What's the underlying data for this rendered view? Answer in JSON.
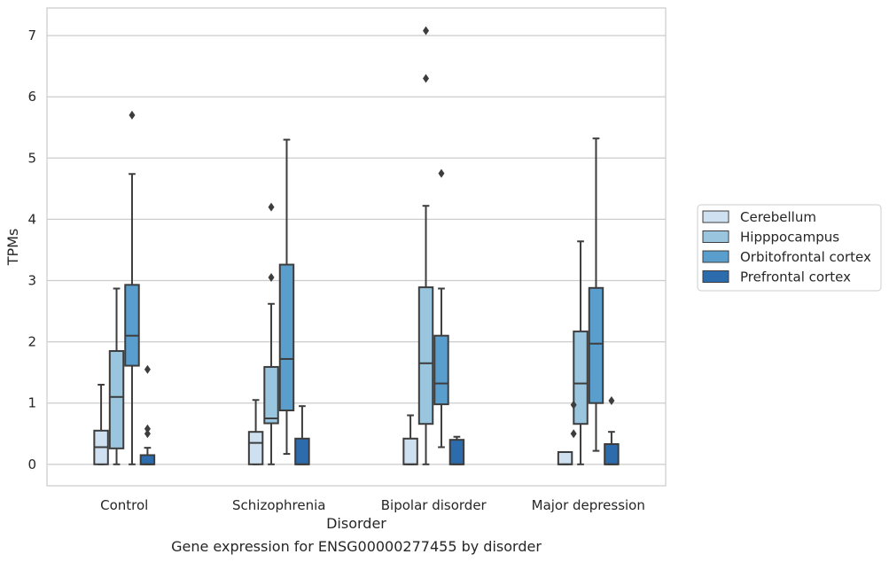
{
  "chart_data": {
    "type": "box",
    "caption": "Gene expression for ENSG00000277455 by disorder",
    "xlabel": "Disorder",
    "ylabel": "TPMs",
    "ylim": [
      -0.35,
      7.45
    ],
    "yticks": [
      0,
      1,
      2,
      3,
      4,
      5,
      6,
      7
    ],
    "grid": "horizontal",
    "legend_position": "right",
    "categories": [
      "Control",
      "Schizophrenia",
      "Bipolar disorder",
      "Major depression"
    ],
    "series": [
      {
        "name": "Cerebellum",
        "color": "#cfe0f1",
        "boxes": [
          {
            "whislo": 0.0,
            "q1": 0.0,
            "med": 0.28,
            "q3": 0.55,
            "whishi": 1.3,
            "fliers": []
          },
          {
            "whislo": 0.0,
            "q1": 0.0,
            "med": 0.35,
            "q3": 0.53,
            "whishi": 1.05,
            "fliers": []
          },
          {
            "whislo": 0.0,
            "q1": 0.0,
            "med": 0.0,
            "q3": 0.42,
            "whishi": 0.8,
            "fliers": []
          },
          {
            "whislo": 0.0,
            "q1": 0.0,
            "med": 0.0,
            "q3": 0.2,
            "whishi": 0.2,
            "fliers": []
          }
        ]
      },
      {
        "name": "Hipppocampus",
        "color": "#9ac5df",
        "boxes": [
          {
            "whislo": 0.0,
            "q1": 0.26,
            "med": 1.1,
            "q3": 1.85,
            "whishi": 2.87,
            "fliers": []
          },
          {
            "whislo": 0.0,
            "q1": 0.67,
            "med": 0.75,
            "q3": 1.59,
            "whishi": 2.62,
            "fliers": [
              3.05,
              4.2
            ]
          },
          {
            "whislo": 0.0,
            "q1": 0.66,
            "med": 1.65,
            "q3": 2.89,
            "whishi": 4.22,
            "fliers": [
              6.3,
              7.08
            ]
          },
          {
            "whislo": 0.0,
            "q1": 0.66,
            "med": 1.32,
            "q3": 2.17,
            "whishi": 3.64,
            "fliers": []
          }
        ]
      },
      {
        "name": "Orbitofrontal cortex",
        "color": "#5a9ecd",
        "boxes": [
          {
            "whislo": 0.0,
            "q1": 1.61,
            "med": 2.1,
            "q3": 2.93,
            "whishi": 4.74,
            "fliers": [
              5.7
            ]
          },
          {
            "whislo": 0.17,
            "q1": 0.88,
            "med": 1.72,
            "q3": 3.26,
            "whishi": 5.3,
            "fliers": []
          },
          {
            "whislo": 0.28,
            "q1": 0.98,
            "med": 1.32,
            "q3": 2.1,
            "whishi": 2.87,
            "fliers": [
              4.75
            ]
          },
          {
            "whislo": 0.22,
            "q1": 1.0,
            "med": 1.97,
            "q3": 2.88,
            "whishi": 5.32,
            "fliers": []
          }
        ]
      },
      {
        "name": "Prefrontal cortex",
        "color": "#2c6cad",
        "boxes": [
          {
            "whislo": 0.0,
            "q1": 0.0,
            "med": 0.0,
            "q3": 0.15,
            "whishi": 0.27,
            "fliers": [
              0.5,
              0.58,
              1.55
            ]
          },
          {
            "whislo": 0.0,
            "q1": 0.0,
            "med": 0.0,
            "q3": 0.42,
            "whishi": 0.95,
            "fliers": []
          },
          {
            "whislo": 0.0,
            "q1": 0.0,
            "med": 0.0,
            "q3": 0.4,
            "whishi": 0.45,
            "fliers": []
          },
          {
            "whislo": 0.0,
            "q1": 0.0,
            "med": 0.0,
            "q3": 0.33,
            "whishi": 0.53,
            "fliers": [
              1.04
            ]
          }
        ]
      }
    ],
    "extra_fliers_cerebellum_major_depression": [
      0.5,
      0.97
    ]
  }
}
